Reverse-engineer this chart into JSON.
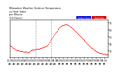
{
  "title": "Milwaukee Weather Outdoor Temperature\nvs Heat Index\nper Minute\n(24 Hours)",
  "title_fontsize": 2.5,
  "legend_labels": [
    "Outdoor Temp",
    "Heat Index"
  ],
  "legend_colors": [
    "#0000cc",
    "#cc0000"
  ],
  "background_color": "#ffffff",
  "plot_color": "#ff0000",
  "vline_x": [
    38,
    60
  ],
  "x_values": [
    0,
    1,
    2,
    3,
    4,
    5,
    6,
    7,
    8,
    9,
    10,
    11,
    12,
    13,
    14,
    15,
    16,
    17,
    18,
    19,
    20,
    21,
    22,
    23,
    24,
    25,
    26,
    27,
    28,
    29,
    30,
    31,
    32,
    33,
    34,
    35,
    36,
    37,
    38,
    39,
    40,
    41,
    42,
    43,
    44,
    45,
    46,
    47,
    48,
    49,
    50,
    51,
    52,
    53,
    54,
    55,
    56,
    57,
    58,
    59,
    60,
    61,
    62,
    63,
    64,
    65,
    66,
    67,
    68,
    69,
    70,
    71,
    72,
    73,
    74,
    75,
    76,
    77,
    78,
    79,
    80,
    81,
    82,
    83,
    84,
    85,
    86,
    87,
    88,
    89,
    90,
    91,
    92,
    93,
    94,
    95,
    96,
    97,
    98,
    99,
    100,
    101,
    102,
    103,
    104,
    105,
    106,
    107,
    108,
    109,
    110,
    111,
    112,
    113,
    114,
    115,
    116,
    117,
    118,
    119,
    120,
    121,
    122,
    123,
    124,
    125,
    126,
    127,
    128,
    129,
    130,
    131,
    132,
    133,
    134,
    135,
    136,
    137,
    138,
    139,
    140,
    141,
    142,
    143
  ],
  "y_values": [
    37,
    36,
    36,
    35,
    34,
    33,
    33,
    32,
    31,
    31,
    30,
    30,
    30,
    30,
    29,
    29,
    29,
    29,
    29,
    28,
    28,
    28,
    28,
    28,
    28,
    27,
    27,
    27,
    28,
    29,
    30,
    30,
    31,
    31,
    31,
    31,
    31,
    31,
    32,
    32,
    32,
    32,
    32,
    32,
    33,
    33,
    33,
    34,
    34,
    35,
    35,
    35,
    36,
    36,
    37,
    38,
    39,
    41,
    42,
    44,
    46,
    47,
    49,
    50,
    52,
    53,
    55,
    56,
    57,
    58,
    60,
    61,
    62,
    63,
    64,
    65,
    65,
    66,
    66,
    66,
    67,
    67,
    67,
    67,
    67,
    66,
    66,
    65,
    64,
    63,
    63,
    62,
    61,
    60,
    59,
    58,
    57,
    56,
    55,
    54,
    53,
    52,
    51,
    50,
    49,
    48,
    47,
    46,
    45,
    44,
    43,
    42,
    41,
    40,
    39,
    38,
    37,
    36,
    35,
    34,
    33,
    33,
    32,
    31,
    30,
    30,
    29,
    28,
    28,
    27,
    27,
    26,
    26,
    26,
    26,
    25,
    25,
    25,
    25,
    25,
    24,
    24,
    24,
    24
  ],
  "ylim": [
    20,
    75
  ],
  "yticks": [
    30,
    40,
    50,
    60,
    70
  ],
  "xlim": [
    0,
    143
  ],
  "xtick_positions": [
    0,
    6,
    12,
    18,
    24,
    30,
    36,
    42,
    48,
    54,
    60,
    66,
    72,
    78,
    84,
    90,
    96,
    102,
    108,
    114,
    120,
    126,
    132,
    138
  ],
  "xtick_labels": [
    "12:00\nAM",
    "1:00\nAM",
    "2:00\nAM",
    "3:00\nAM",
    "4:00\nAM",
    "5:00\nAM",
    "6:00\nAM",
    "7:00\nAM",
    "8:00\nAM",
    "9:00\nAM",
    "10:00\nAM",
    "11:00\nAM",
    "12:00\nPM",
    "1:00\nPM",
    "2:00\nPM",
    "3:00\nPM",
    "4:00\nPM",
    "5:00\nPM",
    "6:00\nPM",
    "7:00\nPM",
    "8:00\nPM",
    "9:00\nPM",
    "10:00\nPM",
    "11:00\nPM"
  ],
  "marker_size": 0.8,
  "tick_fontsize": 2.2,
  "ytick_fontsize": 2.5
}
